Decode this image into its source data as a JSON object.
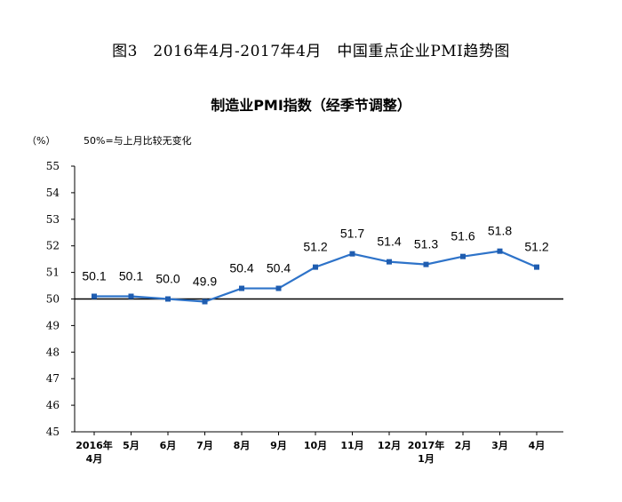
{
  "figure_title": "图3　2016年4月-2017年4月　中国重点企业PMI趋势图",
  "chart_data": {
    "type": "line",
    "title": "制造业PMI指数（经季节调整）",
    "y_unit": "（%）",
    "note": "50%=与上月比较无变化",
    "categories": [
      [
        "2016年",
        "4月"
      ],
      [
        "5月"
      ],
      [
        "6月"
      ],
      [
        "7月"
      ],
      [
        "8月"
      ],
      [
        "9月"
      ],
      [
        "10月"
      ],
      [
        "11月"
      ],
      [
        "12月"
      ],
      [
        "2017年",
        "1月"
      ],
      [
        "2月"
      ],
      [
        "3月"
      ],
      [
        "4月"
      ]
    ],
    "values": [
      50.1,
      50.1,
      50.0,
      49.9,
      50.4,
      50.4,
      51.2,
      51.7,
      51.4,
      51.3,
      51.6,
      51.8,
      51.2
    ],
    "data_labels": [
      "50.1",
      "50.1",
      "50.0",
      "49.9",
      "50.4",
      "50.4",
      "51.2",
      "51.7",
      "51.4",
      "51.3",
      "51.6",
      "51.8",
      "51.2"
    ],
    "ylim": [
      45,
      55
    ],
    "yticks": [
      45,
      46,
      47,
      48,
      49,
      50,
      51,
      52,
      53,
      54,
      55
    ],
    "reference_line": 50,
    "grid": false,
    "legend": "none",
    "line_color": "#2E73C9",
    "marker_color": "#1F5DB0"
  }
}
